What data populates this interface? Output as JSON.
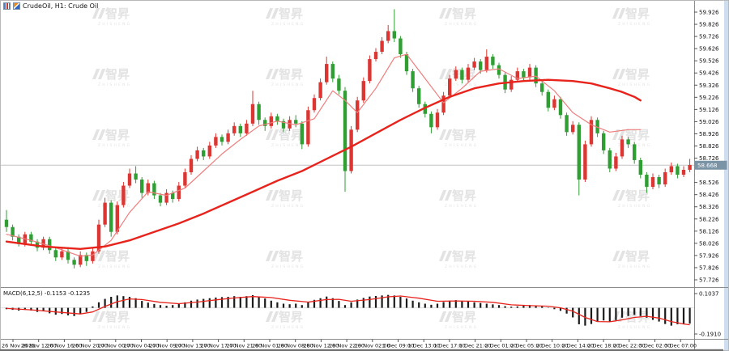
{
  "window": {
    "title": "CrudeOil, H1: Crude Oil"
  },
  "watermark": {
    "logo": "智昇",
    "subtext": "ZHISHENG"
  },
  "chart_data": {
    "type": "candlestick+macd",
    "symbol": "CrudeOil",
    "timeframe": "H1",
    "description": "Crude Oil",
    "colors": {
      "up": "#dd3531",
      "down": "#2f9e33",
      "ma_slow": "#e8231c",
      "ma_fast": "#ef7d7d",
      "hist": "#1b1b1b",
      "signal": "#e8231c",
      "price_line": "#c4c4c4",
      "tag_bg": "#7a93a5",
      "tag_text": "#ffffff",
      "axis_text": "#111111",
      "frame": "#8c8c8c",
      "watermark": "#e3e3e3"
    },
    "price_axis": {
      "tick_labels": [
        "59.926",
        "59.826",
        "59.726",
        "59.626",
        "59.526",
        "59.426",
        "59.326",
        "59.226",
        "59.126",
        "59.026",
        "58.926",
        "58.826",
        "58.726",
        "58.526",
        "58.426",
        "58.326",
        "58.226",
        "58.126",
        "58.026",
        "57.926",
        "57.826",
        "57.726"
      ],
      "current_price": 58.668,
      "current_price_label": "58.668"
    },
    "time_axis": {
      "labels": [
        "26 Nov 2025",
        "26 Nov 12:00",
        "26 Nov 16:00",
        "26 Nov 20:00",
        "27 Nov 00:00",
        "27 Nov 04:00",
        "27 Nov 09:00",
        "27 Nov 13:00",
        "27 Nov 17:00",
        "27 Nov 21:00",
        "28 Nov 01:00",
        "28 Nov 08:00",
        "28 Nov 12:00",
        "28 Nov 22:00",
        "29 Nov 02:00",
        "1 Dec 09:00",
        "1 Dec 13:00",
        "1 Dec 17:00",
        "1 Dec 21:00",
        "2 Dec 01:00",
        "2 Dec 05:00",
        "2 Dec 10:00",
        "2 Dec 14:00",
        "2 Dec 18:00",
        "2 Dec 22:00",
        "3 Dec 02:00",
        "3 Dec 07:00"
      ]
    },
    "candles": [
      [
        58.22,
        58.3,
        58.12,
        58.16
      ],
      [
        58.16,
        58.18,
        58.05,
        58.08
      ],
      [
        58.08,
        58.1,
        58.0,
        58.02
      ],
      [
        58.02,
        58.12,
        58.0,
        58.1
      ],
      [
        58.1,
        58.12,
        58.01,
        58.04
      ],
      [
        58.04,
        58.06,
        57.96,
        57.99
      ],
      [
        57.99,
        58.08,
        57.97,
        58.06
      ],
      [
        58.06,
        58.08,
        57.94,
        57.97
      ],
      [
        57.97,
        57.99,
        57.88,
        57.91
      ],
      [
        57.91,
        57.99,
        57.89,
        57.96
      ],
      [
        57.96,
        57.98,
        57.86,
        57.89
      ],
      [
        57.89,
        57.91,
        57.82,
        57.85
      ],
      [
        57.85,
        57.96,
        57.83,
        57.93
      ],
      [
        57.93,
        57.95,
        57.84,
        57.88
      ],
      [
        57.88,
        57.99,
        57.86,
        57.96
      ],
      [
        57.96,
        58.22,
        57.94,
        58.18
      ],
      [
        58.18,
        58.4,
        58.16,
        58.36
      ],
      [
        58.36,
        58.38,
        58.08,
        58.12
      ],
      [
        58.12,
        58.37,
        58.1,
        58.34
      ],
      [
        58.34,
        58.53,
        58.32,
        58.5
      ],
      [
        58.5,
        58.64,
        58.48,
        58.6
      ],
      [
        58.6,
        58.66,
        58.52,
        58.55
      ],
      [
        58.55,
        58.57,
        58.4,
        58.44
      ],
      [
        58.44,
        58.55,
        58.42,
        58.52
      ],
      [
        58.52,
        58.54,
        58.39,
        58.42
      ],
      [
        58.42,
        58.44,
        58.33,
        58.36
      ],
      [
        58.36,
        58.47,
        58.34,
        58.44
      ],
      [
        58.44,
        58.46,
        58.36,
        58.39
      ],
      [
        58.39,
        58.53,
        58.37,
        58.5
      ],
      [
        58.5,
        58.64,
        58.48,
        58.61
      ],
      [
        58.61,
        58.75,
        58.59,
        58.72
      ],
      [
        58.72,
        58.82,
        58.7,
        58.79
      ],
      [
        58.79,
        58.81,
        58.71,
        58.74
      ],
      [
        58.74,
        58.86,
        58.72,
        58.83
      ],
      [
        58.83,
        58.93,
        58.81,
        58.9
      ],
      [
        58.9,
        58.92,
        58.83,
        58.86
      ],
      [
        58.86,
        58.96,
        58.84,
        58.93
      ],
      [
        58.93,
        59.02,
        58.91,
        58.99
      ],
      [
        58.99,
        59.01,
        58.9,
        58.93
      ],
      [
        58.93,
        59.04,
        58.91,
        59.01
      ],
      [
        59.01,
        59.28,
        58.99,
        59.17
      ],
      [
        59.17,
        59.19,
        59.0,
        59.04
      ],
      [
        59.04,
        59.06,
        58.95,
        58.99
      ],
      [
        58.99,
        59.1,
        58.97,
        59.07
      ],
      [
        59.07,
        59.09,
        59.0,
        59.03
      ],
      [
        59.03,
        59.05,
        58.94,
        58.97
      ],
      [
        58.97,
        59.07,
        58.95,
        59.04
      ],
      [
        59.04,
        59.08,
        58.98,
        59.01
      ],
      [
        59.01,
        59.03,
        58.8,
        58.84
      ],
      [
        58.84,
        59.15,
        58.82,
        59.12
      ],
      [
        59.12,
        59.25,
        59.1,
        59.22
      ],
      [
        59.22,
        59.38,
        59.2,
        59.35
      ],
      [
        59.35,
        59.56,
        59.33,
        59.5
      ],
      [
        59.5,
        59.52,
        59.35,
        59.38
      ],
      [
        59.38,
        59.41,
        59.25,
        59.28
      ],
      [
        59.28,
        59.31,
        58.45,
        58.62
      ],
      [
        58.62,
        58.99,
        58.6,
        58.96
      ],
      [
        58.96,
        59.23,
        58.94,
        59.2
      ],
      [
        59.2,
        59.39,
        59.18,
        59.36
      ],
      [
        59.36,
        59.57,
        59.34,
        59.54
      ],
      [
        59.54,
        59.63,
        59.52,
        59.6
      ],
      [
        59.6,
        59.72,
        59.58,
        59.69
      ],
      [
        59.69,
        59.82,
        59.67,
        59.77
      ],
      [
        59.77,
        59.95,
        59.68,
        59.71
      ],
      [
        59.71,
        59.73,
        59.55,
        59.58
      ],
      [
        59.58,
        59.6,
        59.41,
        59.44
      ],
      [
        59.44,
        59.46,
        59.27,
        59.3
      ],
      [
        59.3,
        59.32,
        59.14,
        59.17
      ],
      [
        59.17,
        59.19,
        59.06,
        59.09
      ],
      [
        59.09,
        59.11,
        58.93,
        58.98
      ],
      [
        58.98,
        59.13,
        58.96,
        59.1
      ],
      [
        59.1,
        59.27,
        59.08,
        59.24
      ],
      [
        59.24,
        59.41,
        59.22,
        59.38
      ],
      [
        59.38,
        59.48,
        59.36,
        59.45
      ],
      [
        59.45,
        59.47,
        59.34,
        59.37
      ],
      [
        59.37,
        59.5,
        59.35,
        59.47
      ],
      [
        59.47,
        59.55,
        59.45,
        59.52
      ],
      [
        59.52,
        59.54,
        59.42,
        59.45
      ],
      [
        59.45,
        59.62,
        59.43,
        59.56
      ],
      [
        59.56,
        59.58,
        59.46,
        59.49
      ],
      [
        59.49,
        59.51,
        59.38,
        59.41
      ],
      [
        59.41,
        59.43,
        59.26,
        59.29
      ],
      [
        59.29,
        59.4,
        59.27,
        59.37
      ],
      [
        59.37,
        59.47,
        59.35,
        59.44
      ],
      [
        59.44,
        59.46,
        59.36,
        59.39
      ],
      [
        59.39,
        59.5,
        59.37,
        59.47
      ],
      [
        59.47,
        59.49,
        59.31,
        59.34
      ],
      [
        59.34,
        59.36,
        59.24,
        59.27
      ],
      [
        59.27,
        59.29,
        59.11,
        59.14
      ],
      [
        59.14,
        59.24,
        59.12,
        59.21
      ],
      [
        59.21,
        59.23,
        59.05,
        59.08
      ],
      [
        59.08,
        59.1,
        58.91,
        58.94
      ],
      [
        58.94,
        59.03,
        58.92,
        59.0
      ],
      [
        59.0,
        59.02,
        58.42,
        58.55
      ],
      [
        58.55,
        58.87,
        58.53,
        58.84
      ],
      [
        58.84,
        59.07,
        58.82,
        59.04
      ],
      [
        59.04,
        59.06,
        58.9,
        58.93
      ],
      [
        58.93,
        58.95,
        58.76,
        58.79
      ],
      [
        58.79,
        58.81,
        58.61,
        58.64
      ],
      [
        58.64,
        58.77,
        58.62,
        58.74
      ],
      [
        58.74,
        58.91,
        58.72,
        58.88
      ],
      [
        58.88,
        58.9,
        58.81,
        58.84
      ],
      [
        58.84,
        58.86,
        58.68,
        58.71
      ],
      [
        58.71,
        58.73,
        58.56,
        58.59
      ],
      [
        58.59,
        58.61,
        58.44,
        58.49
      ],
      [
        58.49,
        58.6,
        58.47,
        58.57
      ],
      [
        58.57,
        58.59,
        58.48,
        58.51
      ],
      [
        58.51,
        58.64,
        58.49,
        58.61
      ],
      [
        58.61,
        58.69,
        58.59,
        58.66
      ],
      [
        58.66,
        58.68,
        58.56,
        58.59
      ],
      [
        58.59,
        58.66,
        58.57,
        58.63
      ],
      [
        58.63,
        58.72,
        58.61,
        58.67
      ]
    ],
    "ma_slow": [
      [
        0,
        58.04
      ],
      [
        6,
        58.0
      ],
      [
        12,
        57.98
      ],
      [
        16,
        58.0
      ],
      [
        20,
        58.05
      ],
      [
        24,
        58.12
      ],
      [
        28,
        58.19
      ],
      [
        32,
        58.27
      ],
      [
        36,
        58.36
      ],
      [
        40,
        58.45
      ],
      [
        44,
        58.54
      ],
      [
        48,
        58.62
      ],
      [
        52,
        58.72
      ],
      [
        56,
        58.82
      ],
      [
        60,
        58.93
      ],
      [
        64,
        59.04
      ],
      [
        68,
        59.14
      ],
      [
        72,
        59.23
      ],
      [
        76,
        59.3
      ],
      [
        80,
        59.34
      ],
      [
        84,
        59.36
      ],
      [
        88,
        59.37
      ],
      [
        92,
        59.36
      ],
      [
        95,
        59.34
      ],
      [
        98,
        59.3
      ],
      [
        100,
        59.27
      ],
      [
        102,
        59.23
      ],
      [
        103,
        59.2
      ]
    ],
    "ma_fast": [
      [
        0,
        58.1
      ],
      [
        4,
        58.05
      ],
      [
        8,
        57.99
      ],
      [
        12,
        57.92
      ],
      [
        14,
        57.93
      ],
      [
        17,
        58.05
      ],
      [
        20,
        58.28
      ],
      [
        23,
        58.45
      ],
      [
        26,
        58.42
      ],
      [
        29,
        58.48
      ],
      [
        32,
        58.62
      ],
      [
        35,
        58.76
      ],
      [
        38,
        58.88
      ],
      [
        41,
        58.99
      ],
      [
        44,
        59.03
      ],
      [
        47,
        59.0
      ],
      [
        50,
        59.05
      ],
      [
        53,
        59.28
      ],
      [
        55,
        59.2
      ],
      [
        57,
        59.1
      ],
      [
        60,
        59.3
      ],
      [
        63,
        59.55
      ],
      [
        65,
        59.58
      ],
      [
        68,
        59.38
      ],
      [
        71,
        59.18
      ],
      [
        74,
        59.3
      ],
      [
        77,
        59.44
      ],
      [
        80,
        59.46
      ],
      [
        83,
        59.38
      ],
      [
        86,
        59.4
      ],
      [
        89,
        59.28
      ],
      [
        92,
        59.1
      ],
      [
        95,
        59.0
      ],
      [
        98,
        58.94
      ],
      [
        101,
        58.96
      ],
      [
        103,
        58.96
      ]
    ],
    "macd": {
      "label": "MACD(6,12,5) -0.1153 -0.1235",
      "axis_labels": [
        "0.1037",
        "-0.1910"
      ],
      "axis_values": [
        0.1037,
        -0.191
      ],
      "histogram": [
        -0.01,
        -0.015,
        -0.02,
        -0.015,
        -0.02,
        -0.03,
        -0.025,
        -0.04,
        -0.05,
        -0.045,
        -0.055,
        -0.06,
        -0.045,
        -0.03,
        0.01,
        0.04,
        0.065,
        0.08,
        0.09,
        0.085,
        0.08,
        0.07,
        0.05,
        0.038,
        0.028,
        0.02,
        0.015,
        0.02,
        0.03,
        0.04,
        0.052,
        0.06,
        0.065,
        0.07,
        0.075,
        0.078,
        0.08,
        0.085,
        0.08,
        0.085,
        0.092,
        0.08,
        0.068,
        0.052,
        0.04,
        0.03,
        0.026,
        0.03,
        0.02,
        0.04,
        0.058,
        0.07,
        0.082,
        0.07,
        0.05,
        0.02,
        0.04,
        0.06,
        0.072,
        0.082,
        0.086,
        0.09,
        0.094,
        0.09,
        0.08,
        0.068,
        0.052,
        0.04,
        0.03,
        0.022,
        0.03,
        0.042,
        0.052,
        0.056,
        0.05,
        0.046,
        0.04,
        0.035,
        0.03,
        0.025,
        0.02,
        0.012,
        0.008,
        0.01,
        0.015,
        0.02,
        0.015,
        0.01,
        0.002,
        -0.01,
        -0.022,
        -0.042,
        -0.07,
        -0.12,
        -0.13,
        -0.118,
        -0.1,
        -0.092,
        -0.1,
        -0.09,
        -0.072,
        -0.06,
        -0.052,
        -0.06,
        -0.072,
        -0.088,
        -0.1,
        -0.118,
        -0.13,
        -0.12,
        -0.116,
        -0.1153
      ],
      "signal": [
        [
          0,
          -0.005
        ],
        [
          4,
          -0.015
        ],
        [
          8,
          -0.03
        ],
        [
          12,
          -0.045
        ],
        [
          14,
          -0.03
        ],
        [
          16,
          0.01
        ],
        [
          18,
          0.045
        ],
        [
          20,
          0.065
        ],
        [
          22,
          0.06
        ],
        [
          25,
          0.04
        ],
        [
          28,
          0.03
        ],
        [
          31,
          0.042
        ],
        [
          34,
          0.058
        ],
        [
          37,
          0.072
        ],
        [
          40,
          0.082
        ],
        [
          43,
          0.075
        ],
        [
          46,
          0.055
        ],
        [
          49,
          0.042
        ],
        [
          52,
          0.06
        ],
        [
          54,
          0.062
        ],
        [
          56,
          0.048
        ],
        [
          59,
          0.06
        ],
        [
          62,
          0.08
        ],
        [
          64,
          0.086
        ],
        [
          67,
          0.07
        ],
        [
          70,
          0.048
        ],
        [
          73,
          0.05
        ],
        [
          76,
          0.048
        ],
        [
          79,
          0.04
        ],
        [
          82,
          0.022
        ],
        [
          85,
          0.016
        ],
        [
          88,
          0.012
        ],
        [
          90,
          0
        ],
        [
          92,
          -0.025
        ],
        [
          94,
          -0.07
        ],
        [
          96,
          -0.1
        ],
        [
          98,
          -0.102
        ],
        [
          100,
          -0.088
        ],
        [
          102,
          -0.07
        ],
        [
          104,
          -0.062
        ],
        [
          106,
          -0.075
        ],
        [
          108,
          -0.1
        ],
        [
          110,
          -0.118
        ],
        [
          111,
          -0.1235
        ]
      ]
    }
  }
}
